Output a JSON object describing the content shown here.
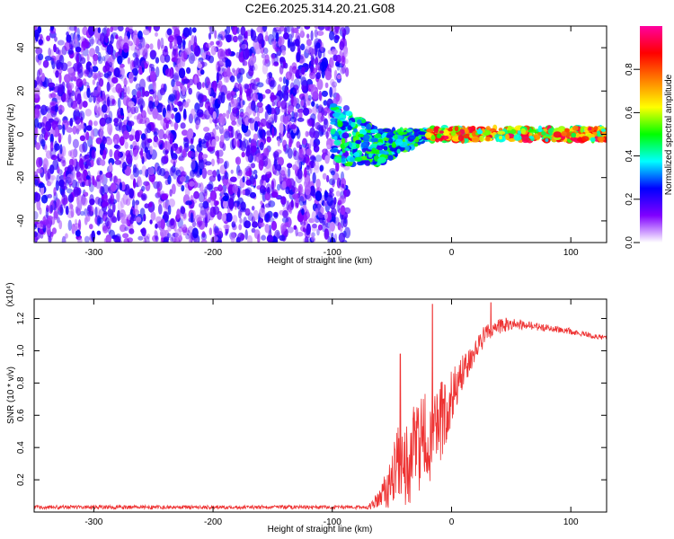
{
  "title": "C2E6.2025.314.20.21.G08",
  "chart_data": [
    {
      "type": "heatmap",
      "xlabel": "Height of straight line (km)",
      "ylabel": "Frequency (Hz)",
      "xlim": [
        -350,
        130
      ],
      "ylim": [
        -50,
        50
      ],
      "x_ticks": [
        -300,
        -200,
        -100,
        0,
        100
      ],
      "y_ticks": [
        -40,
        -20,
        0,
        20,
        40
      ],
      "grid": false,
      "colorbar": {
        "label": "Normalized spectral amplitude",
        "range": [
          0,
          1
        ],
        "ticks": [
          "0.0",
          "0.2",
          "0.4",
          "0.6",
          "0.8"
        ],
        "colormap": [
          "#ffffff",
          "#8000ff",
          "#0000ff",
          "#00ffff",
          "#00ff00",
          "#ffff00",
          "#ff8000",
          "#ff0000",
          "#ff00a0"
        ]
      },
      "regions": [
        {
          "x_range": [
            -350,
            -87
          ],
          "freq_range": [
            -50,
            50
          ],
          "amplitude_range": [
            0.05,
            0.25
          ]
        },
        {
          "x_range": [
            -100,
            -20
          ],
          "freq_range": [
            -12,
            12
          ],
          "amplitude_range": [
            0.2,
            0.55
          ]
        },
        {
          "x_range": [
            -20,
            130
          ],
          "freq_range": [
            -3,
            3
          ],
          "amplitude_range": [
            0.35,
            0.95
          ]
        }
      ]
    },
    {
      "type": "line",
      "xlabel": "Height of straight line (km)",
      "ylabel": "SNR (10 * v/v)",
      "y_multiplier": "(x10⁴)",
      "xlim": [
        -350,
        130
      ],
      "ylim": [
        0,
        1.32
      ],
      "x_ticks": [
        -300,
        -200,
        -100,
        0,
        100
      ],
      "y_ticks": [
        "0.2",
        "0.4",
        "0.6",
        "0.8",
        "1.0",
        "1.2"
      ],
      "color": "#ee3333",
      "grid": false,
      "envelope": {
        "x": [
          -350,
          -70,
          -60,
          -50,
          -45,
          -40,
          -30,
          -20,
          -10,
          0,
          10,
          20,
          30,
          40,
          50,
          60,
          80,
          100,
          120,
          130
        ],
        "mean": [
          0.03,
          0.03,
          0.08,
          0.2,
          0.28,
          0.3,
          0.38,
          0.45,
          0.55,
          0.7,
          0.88,
          1.0,
          1.12,
          1.15,
          1.17,
          1.16,
          1.14,
          1.12,
          1.09,
          1.08
        ],
        "noise": [
          0.012,
          0.012,
          0.07,
          0.18,
          0.25,
          0.28,
          0.3,
          0.3,
          0.25,
          0.18,
          0.1,
          0.08,
          0.06,
          0.05,
          0.04,
          0.03,
          0.02,
          0.02,
          0.015,
          0.015
        ]
      },
      "peaks": [
        {
          "x": -43,
          "y": 0.98
        },
        {
          "x": -16,
          "y": 1.29
        },
        {
          "x": 33,
          "y": 1.3
        }
      ]
    }
  ]
}
